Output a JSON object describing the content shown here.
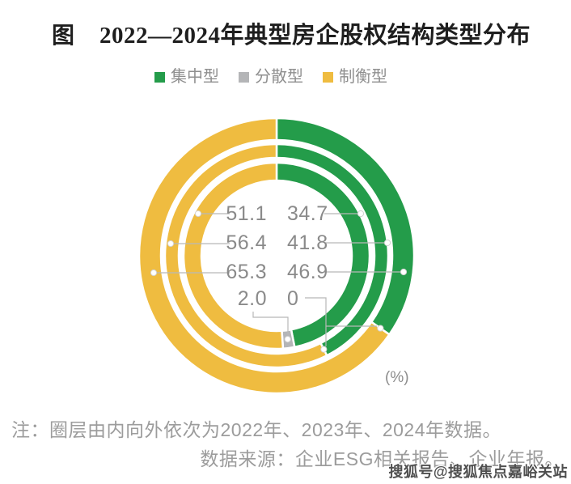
{
  "title": {
    "prefix": "图",
    "text": "2022—2024年典型房企股权结构类型分布"
  },
  "legend": [
    {
      "label": "集中型",
      "color": "#249c4a"
    },
    {
      "label": "分散型",
      "color": "#b4b5b7"
    },
    {
      "label": "制衡型",
      "color": "#efbc40"
    }
  ],
  "unit_label": "(%)",
  "notes": {
    "line1": "注：圈层由内向外依次为2022年、2023年、2024年数据。",
    "line2": "数据来源：企业ESG相关报告、企业年报。"
  },
  "watermark": "搜狐号@搜狐焦点嘉峪关站",
  "chart_data": {
    "type": "donut-multi-ring",
    "title": "2022—2024年典型房企股权结构类型分布",
    "unit": "%",
    "rings_order": "圈层由内向外依次为2022年、2023年、2024年数据",
    "categories": [
      "集中型",
      "分散型",
      "制衡型"
    ],
    "colors": [
      "#249c4a",
      "#b4b5b7",
      "#efbc40"
    ],
    "rings": [
      {
        "year": "2022",
        "values": {
          "集中型": 46.9,
          "分散型": 2.0,
          "制衡型": 51.1
        }
      },
      {
        "year": "2023",
        "values": {
          "集中型": 41.8,
          "分散型": 0,
          "制衡型": 56.4
        }
      },
      {
        "year": "2024",
        "values": {
          "集中型": 34.7,
          "分散型": 0,
          "制衡型": 65.3
        }
      }
    ],
    "center_labels": {
      "left_column": [
        "51.1",
        "56.4",
        "65.3",
        "2.0"
      ],
      "right_column": [
        "34.7",
        "41.8",
        "46.9",
        "0"
      ]
    }
  }
}
